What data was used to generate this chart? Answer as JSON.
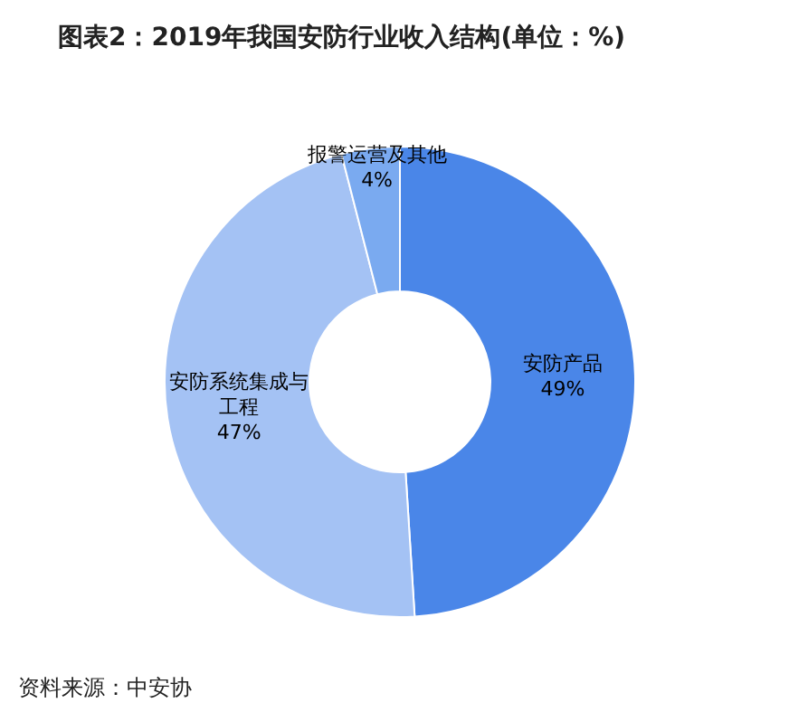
{
  "chart_data": {
    "type": "donut",
    "title": "图表2：2019年我国安防行业收入结构(单位：%)",
    "categories": [
      "安防产品",
      "安防系统集成与工程",
      "报警运营及其他"
    ],
    "values": [
      49,
      47,
      4
    ],
    "colors": [
      "#4a86e8",
      "#a4c2f4",
      "#7aaaf0"
    ],
    "value_labels": [
      "49%",
      "47%",
      "4%"
    ],
    "legend": false,
    "annotations": [
      "资料来源：中安协"
    ]
  }
}
